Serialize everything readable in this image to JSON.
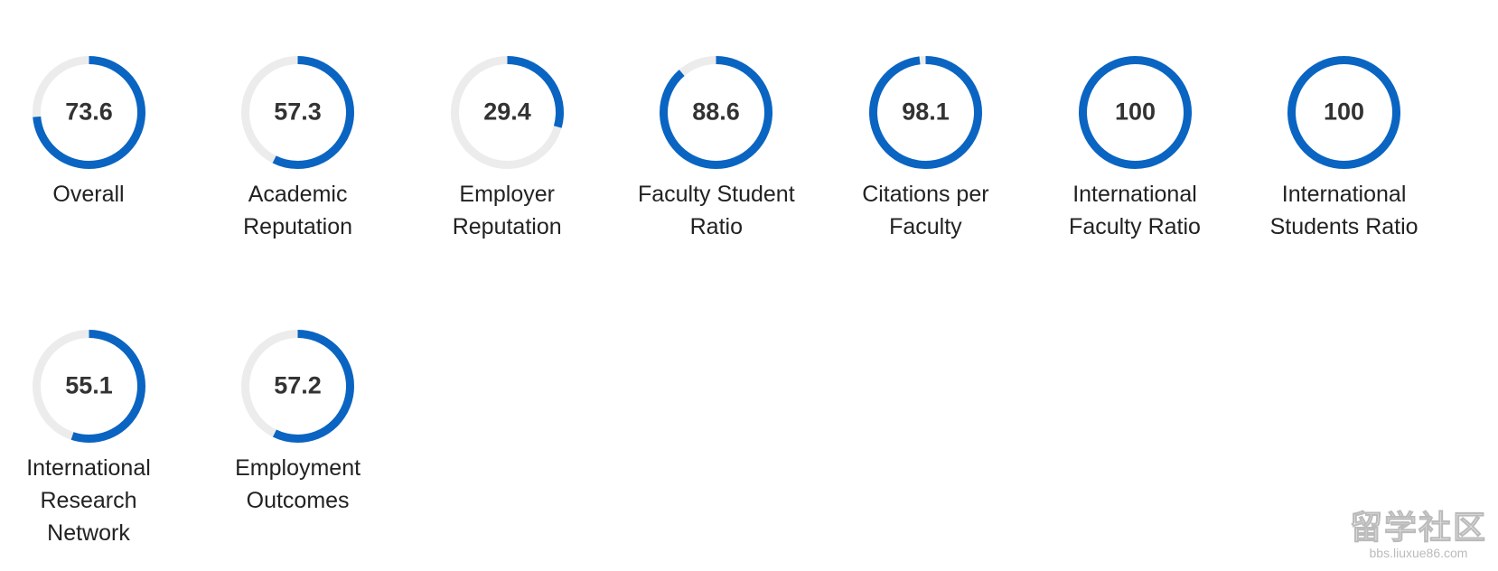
{
  "chart_data": [
    {
      "type": "gauge",
      "title": "Overall",
      "value": 73.6,
      "lim": [
        0,
        100
      ],
      "color": "#0a64c2",
      "track_color": "#ececec"
    },
    {
      "type": "gauge",
      "title": "Academic Reputation",
      "value": 57.3,
      "lim": [
        0,
        100
      ],
      "color": "#0a64c2",
      "track_color": "#ececec"
    },
    {
      "type": "gauge",
      "title": "Employer Reputation",
      "value": 29.4,
      "lim": [
        0,
        100
      ],
      "color": "#0a64c2",
      "track_color": "#ececec"
    },
    {
      "type": "gauge",
      "title": "Faculty Student Ratio",
      "value": 88.6,
      "lim": [
        0,
        100
      ],
      "color": "#0a64c2",
      "track_color": "#ececec"
    },
    {
      "type": "gauge",
      "title": "Citations per Faculty",
      "value": 98.1,
      "lim": [
        0,
        100
      ],
      "color": "#0a64c2",
      "track_color": "#ececec"
    },
    {
      "type": "gauge",
      "title": "International Faculty Ratio",
      "value": 100,
      "lim": [
        0,
        100
      ],
      "color": "#0a64c2",
      "track_color": "#ececec"
    },
    {
      "type": "gauge",
      "title": "International Students Ratio",
      "value": 100,
      "lim": [
        0,
        100
      ],
      "color": "#0a64c2",
      "track_color": "#ececec"
    },
    {
      "type": "gauge",
      "title": "International Research Network",
      "value": 55.1,
      "lim": [
        0,
        100
      ],
      "color": "#0a64c2",
      "track_color": "#ececec"
    },
    {
      "type": "gauge",
      "title": "Employment Outcomes",
      "value": 57.2,
      "lim": [
        0,
        100
      ],
      "color": "#0a64c2",
      "track_color": "#ececec"
    }
  ],
  "watermark": {
    "text": "留学社区",
    "url": "bbs.liuxue86.com"
  }
}
